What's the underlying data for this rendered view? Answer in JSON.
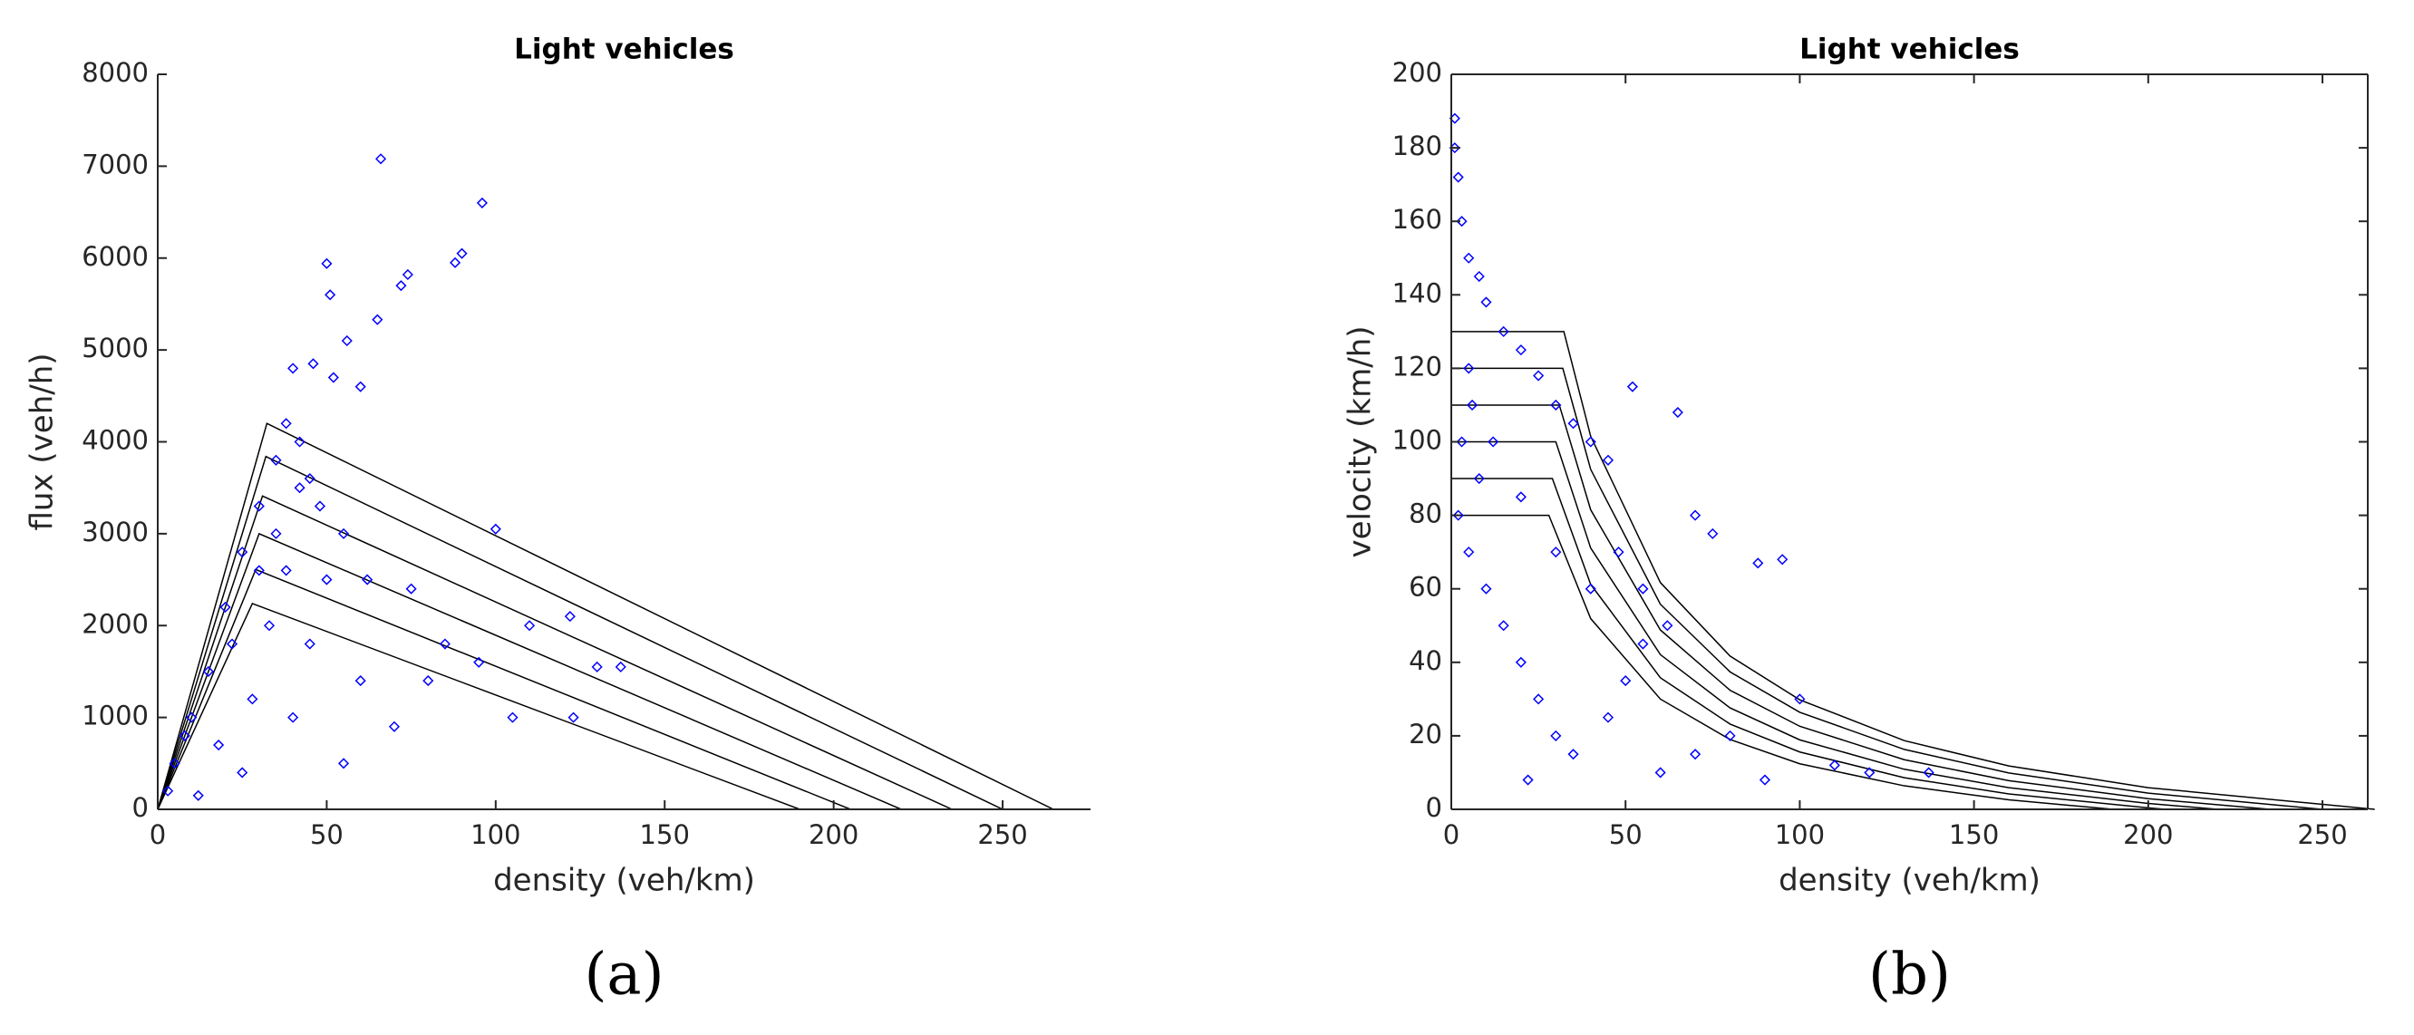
{
  "chart_data": [
    {
      "type": "scatter",
      "title": "Light vehicles",
      "xlabel": "density (veh/km)",
      "ylabel": "flux (veh/h)",
      "panel_label": "(a)",
      "box": false,
      "xlim": [
        0,
        276
      ],
      "xticks": [
        0,
        50,
        100,
        150,
        200,
        250
      ],
      "ylim": [
        0,
        8000
      ],
      "yticks": [
        0,
        1000,
        2000,
        3000,
        4000,
        5000,
        6000,
        7000,
        8000
      ],
      "points": {
        "color": "#0000ff",
        "x": [
          66,
          96,
          50,
          90,
          74,
          72,
          88,
          51,
          56,
          65,
          40,
          46,
          52,
          60,
          38,
          42,
          35,
          45,
          30,
          48,
          55,
          25,
          38,
          62,
          20,
          33,
          45,
          75,
          85,
          100,
          110,
          122,
          130,
          137,
          123,
          105,
          15,
          10,
          5,
          3,
          18,
          28,
          40,
          55,
          70,
          80,
          95,
          60,
          25,
          12,
          35,
          42,
          30,
          50,
          22,
          8
        ],
        "values": [
          7080,
          6600,
          5940,
          6050,
          5820,
          5700,
          5950,
          5600,
          5100,
          5330,
          4800,
          4850,
          4700,
          4600,
          4200,
          4000,
          3800,
          3600,
          3300,
          3300,
          3000,
          2800,
          2600,
          2500,
          2200,
          2000,
          1800,
          2400,
          1800,
          3050,
          2000,
          2100,
          1550,
          1550,
          1000,
          1000,
          1500,
          1000,
          500,
          200,
          700,
          1200,
          1000,
          500,
          900,
          1400,
          1600,
          1400,
          400,
          150,
          3000,
          3500,
          2600,
          2500,
          1800,
          800
        ]
      },
      "line_color": "#000000",
      "lines": [
        {
          "x": [
            0,
            32.3,
            265
          ],
          "values": [
            0,
            4200,
            0
          ]
        },
        {
          "x": [
            0,
            32,
            250
          ],
          "values": [
            0,
            3840,
            0
          ]
        },
        {
          "x": [
            0,
            31,
            235
          ],
          "values": [
            0,
            3410,
            0
          ]
        },
        {
          "x": [
            0,
            30,
            220
          ],
          "values": [
            0,
            3000,
            0
          ]
        },
        {
          "x": [
            0,
            29,
            205
          ],
          "values": [
            0,
            2610,
            0
          ]
        },
        {
          "x": [
            0,
            28,
            190
          ],
          "values": [
            0,
            2240,
            0
          ]
        }
      ]
    },
    {
      "type": "scatter",
      "title": "Light vehicles",
      "xlabel": "density (veh/km)",
      "ylabel": "velocity (km/h)",
      "panel_label": "(b)",
      "box": true,
      "xlim": [
        0,
        263
      ],
      "xticks": [
        0,
        50,
        100,
        150,
        200,
        250
      ],
      "ylim": [
        0,
        200
      ],
      "yticks": [
        0,
        20,
        40,
        60,
        80,
        100,
        120,
        140,
        160,
        180,
        200
      ],
      "points": {
        "color": "#0000ff",
        "x": [
          1,
          1,
          2,
          3,
          5,
          8,
          10,
          15,
          20,
          25,
          30,
          35,
          40,
          45,
          52,
          65,
          70,
          75,
          88,
          95,
          5,
          3,
          8,
          2,
          5,
          10,
          15,
          20,
          25,
          30,
          22,
          35,
          45,
          50,
          55,
          60,
          70,
          80,
          100,
          110,
          120,
          137,
          90,
          40,
          30,
          20,
          12,
          6,
          48,
          55,
          62
        ],
        "values": [
          188,
          180,
          172,
          160,
          150,
          145,
          138,
          130,
          125,
          118,
          110,
          105,
          100,
          95,
          115,
          108,
          80,
          75,
          67,
          68,
          120,
          100,
          90,
          80,
          70,
          60,
          50,
          40,
          30,
          20,
          8,
          15,
          25,
          35,
          45,
          10,
          15,
          20,
          30,
          12,
          10,
          10,
          8,
          60,
          70,
          85,
          100,
          110,
          70,
          60,
          50
        ]
      },
      "line_color": "#000000",
      "lines": [
        {
          "x": [
            0,
            32.3,
            40,
            60,
            80,
            100,
            130,
            160,
            200,
            265
          ],
          "values": [
            130,
            130,
            101.5,
            61.7,
            41.7,
            29.8,
            18.7,
            11.8,
            5.9,
            0
          ]
        },
        {
          "x": [
            0,
            32,
            40,
            60,
            80,
            100,
            130,
            160,
            200,
            250
          ],
          "values": [
            120,
            120,
            92.5,
            55.8,
            37.4,
            26.4,
            16.3,
            9.9,
            4.4,
            0
          ]
        },
        {
          "x": [
            0,
            31,
            40,
            60,
            80,
            100,
            130,
            160,
            200,
            235
          ],
          "values": [
            110,
            110,
            81.5,
            48.8,
            32.4,
            22.6,
            13.5,
            7.8,
            2.9,
            0
          ]
        },
        {
          "x": [
            0,
            30,
            40,
            60,
            80,
            100,
            130,
            160,
            200,
            220
          ],
          "values": [
            100,
            100,
            71.1,
            42.1,
            27.6,
            18.9,
            10.9,
            5.9,
            1.6,
            0
          ]
        },
        {
          "x": [
            0,
            29,
            40,
            60,
            80,
            100,
            130,
            160,
            200,
            205
          ],
          "values": [
            90,
            90,
            61.2,
            35.8,
            23.2,
            15.6,
            8.6,
            4.2,
            0.4,
            0
          ]
        },
        {
          "x": [
            0,
            28,
            40,
            60,
            80,
            100,
            130,
            160,
            190
          ],
          "values": [
            80,
            80,
            51.9,
            30.0,
            19.0,
            12.4,
            6.4,
            2.6,
            0
          ]
        }
      ]
    }
  ]
}
